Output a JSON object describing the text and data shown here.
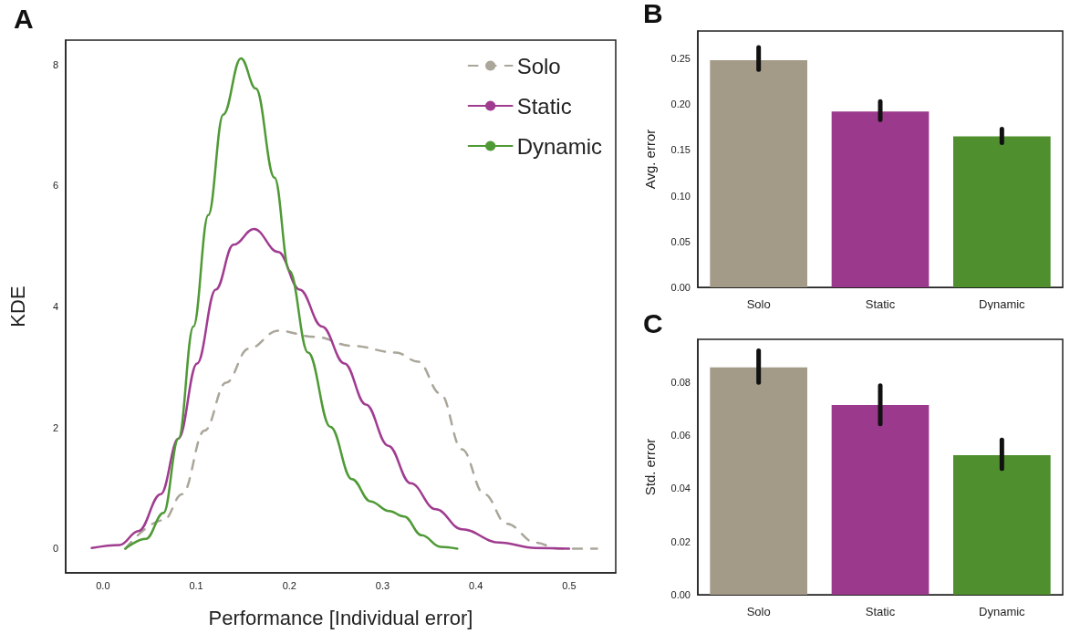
{
  "chart_data": [
    {
      "type": "line",
      "title": "A",
      "xlabel": "Performance [Individual error]",
      "ylabel": "KDE",
      "xlim": [
        -0.04,
        0.55
      ],
      "ylim": [
        -0.4,
        8.4
      ],
      "xticks": [
        {
          "value": 0,
          "label": "0.0"
        },
        0.1,
        0.2,
        0.3,
        0.4,
        0.5
      ],
      "yticks": [
        0,
        2,
        4,
        6,
        8
      ],
      "grid": false,
      "legend": "top right",
      "marker": "none",
      "series": [
        {
          "name": "Solo",
          "color": "#aaa69a",
          "line_style": "dashed",
          "x": [
            0.024,
            0.065,
            0.085,
            0.109,
            0.132,
            0.156,
            0.188,
            0.227,
            0.267,
            0.314,
            0.338,
            0.362,
            0.385,
            0.409,
            0.433,
            0.464,
            0.488,
            0.53
          ],
          "values": [
            0,
            0.47,
            0.9,
            1.95,
            2.74,
            3.3,
            3.6,
            3.5,
            3.35,
            3.24,
            3.09,
            2.56,
            1.64,
            0.9,
            0.41,
            0.1,
            0,
            0
          ]
        },
        {
          "name": "Static",
          "color": "#a03c90",
          "line_style": "solid",
          "x": [
            -0.012,
            0.018,
            0.038,
            0.062,
            0.081,
            0.101,
            0.121,
            0.14,
            0.162,
            0.188,
            0.211,
            0.235,
            0.259,
            0.282,
            0.306,
            0.33,
            0.357,
            0.385,
            0.425,
            0.464,
            0.5
          ],
          "values": [
            0.01,
            0.06,
            0.29,
            0.9,
            1.82,
            3.06,
            4.28,
            5.02,
            5.28,
            4.9,
            4.28,
            3.67,
            3.06,
            2.38,
            1.7,
            1.08,
            0.65,
            0.32,
            0.1,
            0.01,
            0
          ]
        },
        {
          "name": "Dynamic",
          "color": "#4f9a36",
          "line_style": "solid",
          "x": [
            0.024,
            0.046,
            0.065,
            0.081,
            0.097,
            0.113,
            0.129,
            0.148,
            0.164,
            0.184,
            0.2,
            0.22,
            0.244,
            0.267,
            0.287,
            0.307,
            0.323,
            0.342,
            0.362,
            0.38
          ],
          "values": [
            0,
            0.16,
            0.59,
            1.82,
            3.67,
            5.51,
            7.17,
            8.1,
            7.6,
            6.13,
            4.59,
            3.24,
            2.01,
            1.15,
            0.78,
            0.62,
            0.53,
            0.22,
            0.03,
            0
          ]
        }
      ]
    },
    {
      "type": "bar",
      "title": "B",
      "ylabel": "Avg. error",
      "categories": [
        "Solo",
        "Static",
        "Dynamic"
      ],
      "values": [
        0.248,
        0.192,
        0.165
      ],
      "colors": [
        "#a39a88",
        "#9b3a8c",
        "#4f8f2e"
      ],
      "errors": [
        [
          0.238,
          0.262
        ],
        [
          0.183,
          0.203
        ],
        [
          0.158,
          0.173
        ]
      ],
      "ylim": [
        0,
        0.28
      ],
      "yticks": [
        {
          "value": 0,
          "label": "0.00"
        },
        0.05,
        {
          "value": 0.1,
          "label": "0.10"
        },
        0.15,
        {
          "value": 0.2,
          "label": "0.20"
        },
        0.25
      ],
      "grid": false
    },
    {
      "type": "bar",
      "title": "C",
      "ylabel": "Std. error",
      "categories": [
        "Solo",
        "Static",
        "Dynamic"
      ],
      "values": [
        0.0855,
        0.0713,
        0.0525
      ],
      "colors": [
        "#a39a88",
        "#9b3a8c",
        "#4f8f2e"
      ],
      "errors": [
        [
          0.0798,
          0.0917
        ],
        [
          0.0642,
          0.0786
        ],
        [
          0.0474,
          0.0582
        ]
      ],
      "ylim": [
        0,
        0.096
      ],
      "yticks": [
        {
          "value": 0,
          "label": "0.00"
        },
        0.02,
        0.04,
        0.06,
        0.08
      ],
      "grid": false
    }
  ]
}
